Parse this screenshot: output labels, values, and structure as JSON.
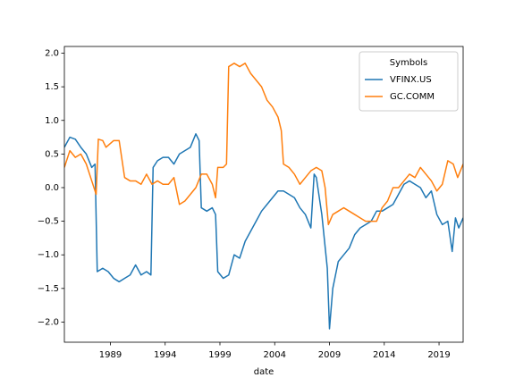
{
  "chart_data": {
    "type": "line",
    "x_label": "date",
    "legend_title": "Symbols",
    "legend": "upper right",
    "xlim": [
      1984.8,
      2021.2
    ],
    "xticks": [
      1989,
      1994,
      1999,
      2004,
      2009,
      2014,
      2019
    ],
    "ylim": [
      -2.3,
      2.1
    ],
    "yticks": [
      {
        "value": -2.0,
        "label": "−2.0"
      },
      {
        "value": -1.5,
        "label": "−1.5"
      },
      {
        "value": -1.0,
        "label": "−1.0"
      },
      {
        "value": -0.5,
        "label": "−0.5"
      },
      {
        "value": 0.0,
        "label": "0.0"
      },
      {
        "value": 0.5,
        "label": "0.5"
      },
      {
        "value": 1.0,
        "label": "1.0"
      },
      {
        "value": 1.5,
        "label": "1.5"
      },
      {
        "value": 2.0,
        "label": "2.0"
      }
    ],
    "series": [
      {
        "name": "VFINX.US",
        "color": "#1f77b4",
        "x": [
          1984.8,
          1985.3,
          1985.8,
          1986.3,
          1986.8,
          1987.3,
          1987.6,
          1987.8,
          1988.3,
          1988.8,
          1989.3,
          1989.8,
          1990.3,
          1990.8,
          1991.3,
          1991.8,
          1992.3,
          1992.7,
          1992.9,
          1993.3,
          1993.8,
          1994.3,
          1994.8,
          1995.3,
          1995.8,
          1996.3,
          1996.8,
          1997.1,
          1997.3,
          1997.8,
          1998.3,
          1998.6,
          1998.8,
          1999.3,
          1999.8,
          2000.3,
          2000.8,
          2001.3,
          2001.8,
          2002.3,
          2002.8,
          2003.3,
          2003.8,
          2004.3,
          2004.8,
          2005.3,
          2005.8,
          2006.3,
          2006.8,
          2007.3,
          2007.6,
          2007.8,
          2008.3,
          2008.8,
          2009.0,
          2009.3,
          2009.8,
          2010.3,
          2010.8,
          2011.3,
          2011.8,
          2012.3,
          2012.8,
          2013.3,
          2013.8,
          2014.3,
          2014.8,
          2015.3,
          2015.8,
          2016.3,
          2016.8,
          2017.3,
          2017.8,
          2018.3,
          2018.8,
          2019.3,
          2019.8,
          2020.2,
          2020.5,
          2020.8,
          2021.2
        ],
        "values": [
          0.6,
          0.75,
          0.72,
          0.6,
          0.5,
          0.3,
          0.35,
          -1.25,
          -1.2,
          -1.25,
          -1.35,
          -1.4,
          -1.35,
          -1.3,
          -1.15,
          -1.3,
          -1.25,
          -1.3,
          0.3,
          0.4,
          0.45,
          0.45,
          0.35,
          0.5,
          0.55,
          0.6,
          0.8,
          0.7,
          -0.3,
          -0.35,
          -0.3,
          -0.4,
          -1.25,
          -1.35,
          -1.3,
          -1.0,
          -1.05,
          -0.8,
          -0.65,
          -0.5,
          -0.35,
          -0.25,
          -0.15,
          -0.05,
          -0.05,
          -0.1,
          -0.15,
          -0.3,
          -0.4,
          -0.6,
          0.2,
          0.15,
          -0.4,
          -1.2,
          -2.1,
          -1.5,
          -1.1,
          -1.0,
          -0.9,
          -0.7,
          -0.6,
          -0.55,
          -0.5,
          -0.35,
          -0.35,
          -0.3,
          -0.25,
          -0.1,
          0.05,
          0.1,
          0.05,
          0.0,
          -0.15,
          -0.05,
          -0.4,
          -0.55,
          -0.5,
          -0.95,
          -0.45,
          -0.6,
          -0.45
        ]
      },
      {
        "name": "GC.COMM",
        "color": "#ff7f0e",
        "x": [
          1984.8,
          1985.3,
          1985.8,
          1986.3,
          1986.8,
          1987.3,
          1987.7,
          1987.9,
          1988.3,
          1988.6,
          1989.3,
          1989.8,
          1990.3,
          1990.8,
          1991.3,
          1991.8,
          1992.3,
          1992.8,
          1993.3,
          1993.8,
          1994.3,
          1994.8,
          1995.3,
          1995.8,
          1996.3,
          1996.8,
          1997.3,
          1997.8,
          1998.3,
          1998.6,
          1998.8,
          1999.3,
          1999.6,
          1999.8,
          2000.3,
          2000.8,
          2001.3,
          2001.8,
          2002.3,
          2002.8,
          2003.3,
          2003.8,
          2004.3,
          2004.6,
          2004.8,
          2005.3,
          2005.8,
          2006.3,
          2006.8,
          2007.3,
          2007.8,
          2008.3,
          2008.6,
          2008.9,
          2009.3,
          2009.8,
          2010.3,
          2010.8,
          2011.3,
          2011.8,
          2012.3,
          2012.8,
          2013.3,
          2013.8,
          2014.3,
          2014.8,
          2015.3,
          2015.8,
          2016.3,
          2016.8,
          2017.3,
          2017.8,
          2018.3,
          2018.8,
          2019.3,
          2019.8,
          2020.3,
          2020.7,
          2021.2
        ],
        "values": [
          0.3,
          0.55,
          0.45,
          0.5,
          0.35,
          0.1,
          -0.1,
          0.72,
          0.7,
          0.6,
          0.7,
          0.7,
          0.15,
          0.1,
          0.1,
          0.05,
          0.2,
          0.05,
          0.1,
          0.05,
          0.05,
          0.15,
          -0.25,
          -0.2,
          -0.1,
          0.0,
          0.2,
          0.2,
          0.05,
          -0.15,
          0.3,
          0.3,
          0.35,
          1.8,
          1.85,
          1.8,
          1.85,
          1.7,
          1.6,
          1.5,
          1.3,
          1.2,
          1.05,
          0.85,
          0.35,
          0.3,
          0.2,
          0.05,
          0.15,
          0.25,
          0.3,
          0.25,
          0.0,
          -0.55,
          -0.4,
          -0.35,
          -0.3,
          -0.35,
          -0.4,
          -0.45,
          -0.5,
          -0.5,
          -0.5,
          -0.3,
          -0.2,
          0.0,
          0.0,
          0.1,
          0.2,
          0.15,
          0.3,
          0.2,
          0.1,
          -0.05,
          0.05,
          0.4,
          0.35,
          0.15,
          0.35
        ]
      }
    ]
  }
}
